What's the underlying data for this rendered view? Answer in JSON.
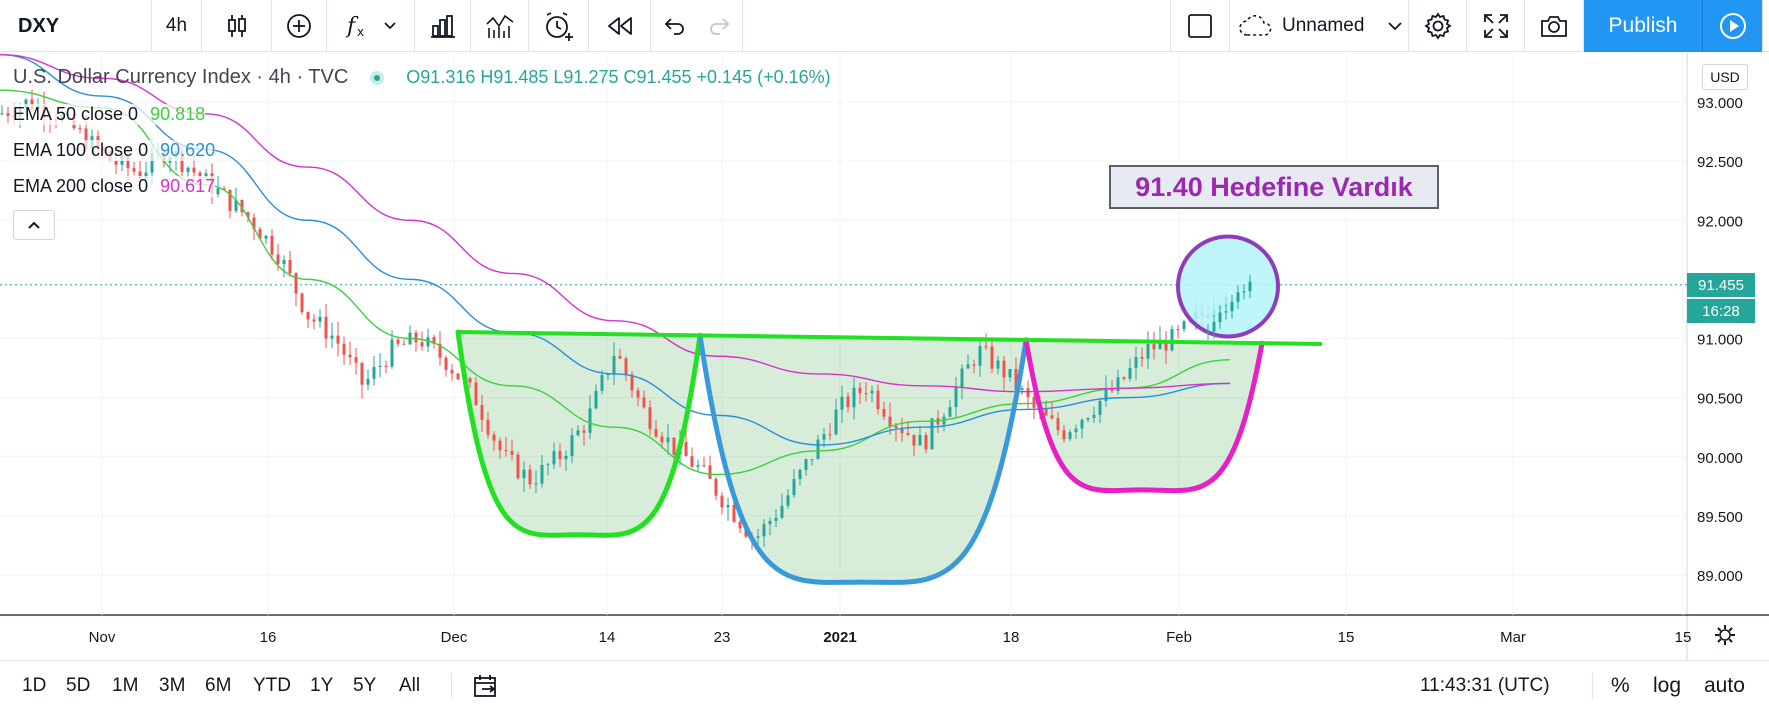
{
  "toolbar": {
    "symbol": "DXY",
    "interval": "4h",
    "layout_name": "Unnamed",
    "publish_label": "Publish"
  },
  "legend": {
    "title": "U.S. Dollar Currency Index · 4h · TVC",
    "ohlc": "O91.316  H91.485  L91.275  C91.455  +0.145 (+0.16%)",
    "ema50_label": "EMA 50 close 0",
    "ema50_value": "90.818",
    "ema100_label": "EMA 100 close 0",
    "ema100_value": "90.620",
    "ema200_label": "EMA 200 close 0",
    "ema200_value": "90.617"
  },
  "price_axis": {
    "currency": "USD",
    "last_price": "91.455",
    "countdown": "16:28"
  },
  "annotation": {
    "text": "91.40 Hedefine Vardık"
  },
  "bottom": {
    "ranges": [
      "1D",
      "5D",
      "1M",
      "3M",
      "6M",
      "YTD",
      "1Y",
      "5Y",
      "All"
    ],
    "clock": "11:43:31 (UTC)",
    "percent": "%",
    "log": "log",
    "auto": "auto"
  },
  "colors": {
    "up": "#26a69a",
    "down": "#ef5350",
    "ema50": "#3ecf3e",
    "ema100": "#2b8fd8",
    "ema200": "#d633c9",
    "pattern_green": "#22e022",
    "pattern_blue": "#3a9ad9",
    "pattern_magenta": "#e61fc7",
    "neckline": "#22e022",
    "target_circle_fill": "#b3f4fb",
    "target_circle_stroke": "#8e3db8",
    "publish": "#2196f3"
  },
  "chart_data": {
    "type": "line",
    "y_ticks": [
      "93.000",
      "92.500",
      "92.000",
      "91.000",
      "90.500",
      "90.000",
      "89.500",
      "89.000"
    ],
    "ylim": [
      88.85,
      93.2
    ],
    "x_ticks": [
      "Nov",
      "16",
      "Dec",
      "14",
      "23",
      "2021",
      "18",
      "Feb",
      "15",
      "Mar",
      "15"
    ],
    "series": [
      {
        "name": "EMA 50 close 0",
        "x_ticks_index": [
          0,
          1,
          2,
          3,
          4,
          5,
          6,
          7,
          8
        ],
        "values": [
          93.1,
          92.95,
          92.3,
          91.5,
          91.0,
          90.6,
          90.25,
          89.85,
          90.05,
          90.3,
          90.45,
          90.58,
          90.82
        ]
      },
      {
        "name": "EMA 100 close 0",
        "values": [
          93.4,
          93.05,
          92.6,
          92.0,
          91.5,
          91.05,
          90.7,
          90.35,
          90.1,
          90.25,
          90.4,
          90.5,
          90.62
        ]
      },
      {
        "name": "EMA 200 close 0",
        "values": [
          93.4,
          93.2,
          92.9,
          92.45,
          92.0,
          91.55,
          91.15,
          90.85,
          90.7,
          90.6,
          90.55,
          90.58,
          90.62
        ]
      }
    ],
    "price_path": [
      92.9,
      93.0,
      92.9,
      92.7,
      92.5,
      92.4,
      92.6,
      92.4,
      92.2,
      92.0,
      91.7,
      91.2,
      91.0,
      90.6,
      90.9,
      91.0,
      90.8,
      90.5,
      90.0,
      89.8,
      90.0,
      90.3,
      90.9,
      90.4,
      90.1,
      89.9,
      89.6,
      89.3,
      89.6,
      90.0,
      90.4,
      90.6,
      90.3,
      90.1,
      90.5,
      90.9,
      90.7,
      90.4,
      90.2,
      90.4,
      90.6,
      90.9,
      91.0,
      91.2,
      91.455
    ],
    "annotations": {
      "neckline": 91.0,
      "target": 91.4,
      "cups": [
        "left",
        "head",
        "right"
      ]
    }
  }
}
